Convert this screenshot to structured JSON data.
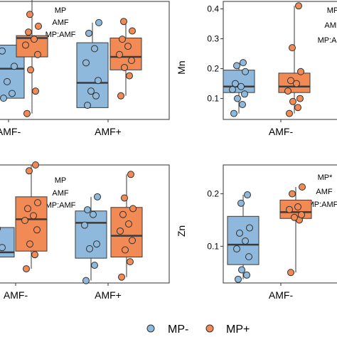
{
  "colors": {
    "mp_minus": "#8FB9DC",
    "mp_plus": "#F28A56",
    "box_line": "#3a3a3a",
    "point_stroke": "#2f2f2f"
  },
  "legend": {
    "position": "bottom",
    "entries": [
      "MP-",
      "MP+"
    ]
  },
  "chart_data": [
    {
      "type": "box",
      "panel": "top-left",
      "ylabel": "",
      "categories": [
        "AMF-",
        "AMF+"
      ],
      "ylim": [
        0.0,
        1.0
      ],
      "yticks": [],
      "annotations": [
        "MP",
        "AMF",
        "MP:AMF"
      ],
      "series": [
        {
          "name": "MP-",
          "boxes": [
            {
              "q1": 0.18,
              "median": 0.43,
              "q3": 0.63,
              "points": [
                0.18,
                0.22,
                0.32,
                0.45,
                0.58
              ]
            },
            {
              "q1": 0.1,
              "median": 0.31,
              "q3": 0.65,
              "points": [
                0.12,
                0.2,
                0.24,
                0.33,
                0.48,
                0.6,
                0.73,
                0.82
              ]
            }
          ]
        },
        {
          "name": "MP+",
          "boxes": [
            {
              "q1": 0.53,
              "median": 0.69,
              "q3": 0.71,
              "points": [
                0.05,
                0.24,
                0.42,
                0.55,
                0.63,
                0.68,
                0.74,
                0.79,
                0.89,
                1.05
              ]
            },
            {
              "q1": 0.42,
              "median": 0.53,
              "q3": 0.69,
              "points": [
                0.2,
                0.37,
                0.44,
                0.5,
                0.55,
                0.62,
                0.68,
                0.75,
                0.83
              ]
            }
          ]
        }
      ]
    },
    {
      "type": "box",
      "panel": "top-right",
      "ylabel": "Mn",
      "categories": [
        "AMF-",
        "AMF+"
      ],
      "ylim": [
        0.03,
        0.425
      ],
      "yticks": [
        "0.1",
        "0.2",
        "0.3",
        "0.4"
      ],
      "annotations": [
        "MP",
        "AMF",
        "MP:AMF"
      ],
      "series": [
        {
          "name": "MP-",
          "boxes": [
            {
              "q1": 0.12,
              "median": 0.14,
              "q3": 0.195,
              "points": [
                0.05,
                0.08,
                0.1,
                0.115,
                0.13,
                0.14,
                0.15,
                0.19,
                0.21,
                0.22
              ]
            }
          ]
        },
        {
          "name": "MP+",
          "boxes": [
            {
              "q1": 0.12,
              "median": 0.14,
              "q3": 0.185,
              "points": [
                0.05,
                0.07,
                0.09,
                0.1,
                0.125,
                0.15,
                0.16,
                0.19,
                0.27,
                0.41
              ]
            }
          ]
        }
      ]
    },
    {
      "type": "box",
      "panel": "bottom-left",
      "ylabel": "",
      "categories": [
        "AMF-",
        "AMF+"
      ],
      "ylim": [
        0.0,
        1.0
      ],
      "yticks": [],
      "annotations": [
        "MP",
        "AMF",
        "MP:AMF"
      ],
      "series": [
        {
          "name": "MP-",
          "boxes": [
            {
              "q1": 0.22,
              "median": 0.26,
              "q3": 0.47,
              "points": [
                0.2,
                0.3,
                0.46
              ]
            }
          ]
        },
        {
          "name": "MP+",
          "boxes": [
            {
              "q1": 0.27,
              "median": 0.54,
              "q3": 0.73,
              "points": [
                0.12,
                0.24,
                0.33,
                0.45,
                0.53,
                0.57,
                0.63,
                0.68,
                0.95,
                1.0
              ]
            },
            {
              "q1": 0.22,
              "median": 0.4,
              "q3": 0.64,
              "points": [
                0.05,
                0.18,
                0.28,
                0.36,
                0.44,
                0.5,
                0.58,
                0.63,
                0.72,
                0.92
              ]
            }
          ]
        },
        {
          "name": "MP-",
          "boxes": [
            {
              "q1": 0.21,
              "median": 0.51,
              "q3": 0.61,
              "points": [
                0.02,
                0.15,
                0.29,
                0.33,
                0.49,
                0.58,
                0.62,
                0.73
              ]
            }
          ]
        }
      ]
    },
    {
      "type": "box",
      "panel": "bottom-right",
      "ylabel": "Zn",
      "categories": [
        "AMF-"
      ],
      "ylim": [
        0.03,
        0.255
      ],
      "yticks": [
        "0.1",
        "0.2"
      ],
      "annotations": [
        "MP*",
        "AMF",
        "MP:AMF"
      ],
      "series": [
        {
          "name": "MP-",
          "boxes": [
            {
              "q1": 0.065,
              "median": 0.103,
              "q3": 0.157,
              "points": [
                0.037,
                0.045,
                0.055,
                0.08,
                0.095,
                0.11,
                0.125,
                0.135,
                0.182,
                0.198
              ]
            }
          ]
        },
        {
          "name": "MP+",
          "boxes": [
            {
              "q1": 0.153,
              "median": 0.165,
              "q3": 0.188,
              "points": [
                0.05,
                0.15,
                0.155,
                0.16,
                0.17,
                0.175,
                0.2,
                0.213
              ]
            }
          ]
        }
      ]
    }
  ]
}
